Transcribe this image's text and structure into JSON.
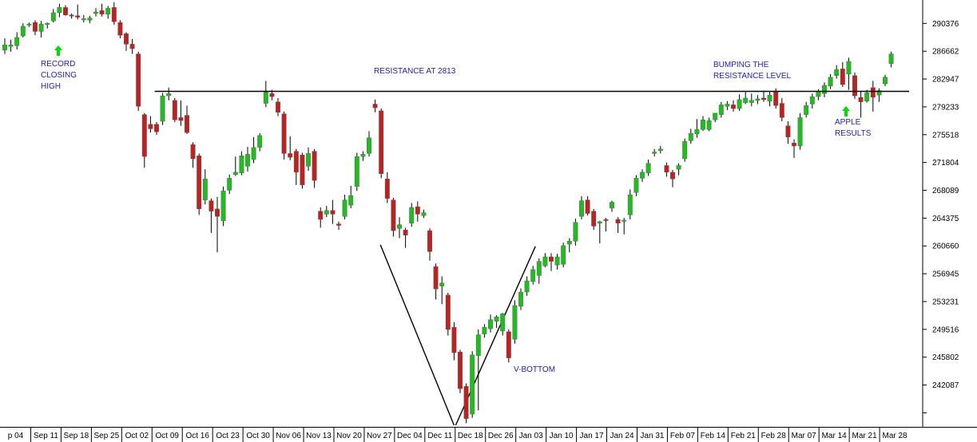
{
  "chart_data": {
    "type": "candlestick",
    "title": "",
    "xlabel": "",
    "ylabel": "",
    "colors": {
      "up": "#22bb22",
      "down": "#bb2222",
      "wick": "#000000",
      "annotation": "#2222aa",
      "arrow": "#00dd00"
    },
    "y_tick_labels": [
      "290376",
      "286662",
      "282947",
      "279233",
      "275518",
      "271804",
      "268089",
      "264375",
      "260660",
      "256945",
      "253231",
      "249516",
      "245802",
      "242087"
    ],
    "ylim": [
      236500,
      293500
    ],
    "x_tick_labels": [
      "p 04",
      "Sep 11",
      "Sep 18",
      "Sep 25",
      "Oct 02",
      "Oct 09",
      "Oct 16",
      "Oct 23",
      "Oct 30",
      "Nov 06",
      "Nov 13",
      "Nov 20",
      "Nov 27",
      "Dec 04",
      "Dec 11",
      "Dec 18",
      "Dec 26",
      "Jan 03",
      "Jan 10",
      "Jan 17",
      "Jan 24",
      "Jan 31",
      "Feb 07",
      "Feb 14",
      "Feb 21",
      "Feb 28",
      "Mar 07",
      "Mar 14",
      "Mar 21",
      "Mar 28"
    ],
    "resistance": {
      "value": 281300,
      "label": "RESISTANCE AT 2813"
    },
    "v_bottom": {
      "label": "V-BOTTOM",
      "lows": [
        {
          "date_index": 62,
          "value": 260800
        },
        {
          "date_index": 74,
          "value": 237000
        },
        {
          "date_index": 87,
          "value": 260600
        }
      ]
    },
    "annotations": [
      {
        "lines": [
          "RECORD",
          "CLOSING",
          "HIGH"
        ],
        "date_index": 9,
        "arrow": true
      },
      {
        "lines": [
          "BUMPING THE",
          "RESISTANCE LEVEL"
        ],
        "date_index": 113,
        "arrow": false
      },
      {
        "lines": [
          "APPLE",
          "RESULTS"
        ],
        "date_index": 133,
        "arrow": true
      }
    ],
    "series": [
      {
        "o": 286800,
        "h": 288400,
        "l": 286300,
        "c": 287500
      },
      {
        "o": 287300,
        "h": 288200,
        "l": 286600,
        "c": 287500
      },
      {
        "o": 287400,
        "h": 289200,
        "l": 286900,
        "c": 288500
      },
      {
        "o": 288700,
        "h": 290400,
        "l": 288500,
        "c": 290000
      },
      {
        "o": 290200,
        "h": 290500,
        "l": 289900,
        "c": 290300
      },
      {
        "o": 290500,
        "h": 290800,
        "l": 288800,
        "c": 289300
      },
      {
        "o": 289300,
        "h": 290700,
        "l": 288500,
        "c": 290300
      },
      {
        "o": 290300,
        "h": 290500,
        "l": 289700,
        "c": 290400
      },
      {
        "o": 290700,
        "h": 292300,
        "l": 290500,
        "c": 291800
      },
      {
        "o": 291800,
        "h": 293000,
        "l": 291200,
        "c": 292500
      },
      {
        "o": 292500,
        "h": 292800,
        "l": 291400,
        "c": 291500
      },
      {
        "o": 291500,
        "h": 291700,
        "l": 291000,
        "c": 291400
      },
      {
        "o": 291400,
        "h": 292900,
        "l": 290900,
        "c": 291200
      },
      {
        "o": 290900,
        "h": 291500,
        "l": 290500,
        "c": 291000
      },
      {
        "o": 290800,
        "h": 291400,
        "l": 290400,
        "c": 291100
      },
      {
        "o": 291700,
        "h": 292400,
        "l": 291300,
        "c": 291900
      },
      {
        "o": 292100,
        "h": 293000,
        "l": 291300,
        "c": 291600
      },
      {
        "o": 291600,
        "h": 292700,
        "l": 291000,
        "c": 292400
      },
      {
        "o": 292500,
        "h": 293200,
        "l": 290200,
        "c": 290600
      },
      {
        "o": 290500,
        "h": 290800,
        "l": 288400,
        "c": 288800
      },
      {
        "o": 289000,
        "h": 289200,
        "l": 286700,
        "c": 287600
      },
      {
        "o": 287600,
        "h": 288300,
        "l": 286300,
        "c": 287000
      },
      {
        "o": 286300,
        "h": 286600,
        "l": 278700,
        "c": 279300
      },
      {
        "o": 278200,
        "h": 278400,
        "l": 271100,
        "c": 272600
      },
      {
        "o": 276900,
        "h": 278000,
        "l": 275800,
        "c": 276300
      },
      {
        "o": 276900,
        "h": 277200,
        "l": 275500,
        "c": 275900
      },
      {
        "o": 277300,
        "h": 281100,
        "l": 276800,
        "c": 280700
      },
      {
        "o": 280700,
        "h": 281800,
        "l": 280100,
        "c": 281000
      },
      {
        "o": 280100,
        "h": 280400,
        "l": 277200,
        "c": 277500
      },
      {
        "o": 277800,
        "h": 280100,
        "l": 276700,
        "c": 277400
      },
      {
        "o": 278100,
        "h": 279400,
        "l": 275600,
        "c": 275800
      },
      {
        "o": 274200,
        "h": 274500,
        "l": 271100,
        "c": 272300
      },
      {
        "o": 272700,
        "h": 273000,
        "l": 264800,
        "c": 265600
      },
      {
        "o": 266800,
        "h": 270900,
        "l": 266200,
        "c": 269600
      },
      {
        "o": 266700,
        "h": 267000,
        "l": 262400,
        "c": 265300
      },
      {
        "o": 265600,
        "h": 267200,
        "l": 259800,
        "c": 264600
      },
      {
        "o": 264000,
        "h": 268600,
        "l": 263300,
        "c": 268000
      },
      {
        "o": 268100,
        "h": 270200,
        "l": 267600,
        "c": 269700
      },
      {
        "o": 270200,
        "h": 272600,
        "l": 270000,
        "c": 270500
      },
      {
        "o": 270400,
        "h": 273300,
        "l": 270100,
        "c": 272700
      },
      {
        "o": 271300,
        "h": 273900,
        "l": 270600,
        "c": 272900
      },
      {
        "o": 272200,
        "h": 275200,
        "l": 271700,
        "c": 273800
      },
      {
        "o": 273800,
        "h": 275700,
        "l": 273300,
        "c": 275400
      },
      {
        "o": 279700,
        "h": 282700,
        "l": 279200,
        "c": 281200
      },
      {
        "o": 281000,
        "h": 281500,
        "l": 280100,
        "c": 280600
      },
      {
        "o": 279900,
        "h": 280400,
        "l": 278000,
        "c": 278500
      },
      {
        "o": 278300,
        "h": 278600,
        "l": 272200,
        "c": 273000
      },
      {
        "o": 273000,
        "h": 275300,
        "l": 272100,
        "c": 272500
      },
      {
        "o": 273300,
        "h": 273600,
        "l": 268800,
        "c": 270500
      },
      {
        "o": 272800,
        "h": 273100,
        "l": 268300,
        "c": 268800
      },
      {
        "o": 271300,
        "h": 273800,
        "l": 270700,
        "c": 273000
      },
      {
        "o": 273300,
        "h": 273600,
        "l": 268400,
        "c": 269400
      },
      {
        "o": 265300,
        "h": 265800,
        "l": 263100,
        "c": 264200
      },
      {
        "o": 264900,
        "h": 266000,
        "l": 264500,
        "c": 265400
      },
      {
        "o": 265400,
        "h": 266800,
        "l": 263600,
        "c": 264900
      },
      {
        "o": 263600,
        "h": 263900,
        "l": 262800,
        "c": 263400
      },
      {
        "o": 264600,
        "h": 267500,
        "l": 264200,
        "c": 266800
      },
      {
        "o": 266100,
        "h": 268700,
        "l": 265700,
        "c": 267400
      },
      {
        "o": 268600,
        "h": 273100,
        "l": 268000,
        "c": 272600
      },
      {
        "o": 272600,
        "h": 273300,
        "l": 272000,
        "c": 272900
      },
      {
        "o": 273000,
        "h": 276000,
        "l": 272600,
        "c": 275100
      },
      {
        "o": 279600,
        "h": 280200,
        "l": 278500,
        "c": 279100
      },
      {
        "o": 278700,
        "h": 279000,
        "l": 269700,
        "c": 270300
      },
      {
        "o": 269600,
        "h": 270500,
        "l": 266400,
        "c": 267000
      },
      {
        "o": 266800,
        "h": 267100,
        "l": 261900,
        "c": 262700
      },
      {
        "o": 263000,
        "h": 264500,
        "l": 261700,
        "c": 263500
      },
      {
        "o": 262800,
        "h": 263100,
        "l": 260400,
        "c": 262100
      },
      {
        "o": 263700,
        "h": 266400,
        "l": 263200,
        "c": 265800
      },
      {
        "o": 265900,
        "h": 266600,
        "l": 263900,
        "c": 264900
      },
      {
        "o": 264700,
        "h": 265500,
        "l": 264400,
        "c": 265100
      },
      {
        "o": 262700,
        "h": 263000,
        "l": 258700,
        "c": 259900
      },
      {
        "o": 257900,
        "h": 258300,
        "l": 253500,
        "c": 254900
      },
      {
        "o": 255300,
        "h": 256600,
        "l": 252900,
        "c": 255700
      },
      {
        "o": 254100,
        "h": 254400,
        "l": 248700,
        "c": 249500
      },
      {
        "o": 249800,
        "h": 250500,
        "l": 245400,
        "c": 246400
      },
      {
        "o": 246500,
        "h": 246800,
        "l": 241000,
        "c": 241600
      },
      {
        "o": 241900,
        "h": 242300,
        "l": 237000,
        "c": 237600
      },
      {
        "o": 238200,
        "h": 246600,
        "l": 237700,
        "c": 246100
      },
      {
        "o": 246000,
        "h": 249500,
        "l": 238700,
        "c": 248800
      },
      {
        "o": 248900,
        "h": 250200,
        "l": 248400,
        "c": 249800
      },
      {
        "o": 249600,
        "h": 251500,
        "l": 249100,
        "c": 250800
      },
      {
        "o": 250600,
        "h": 251400,
        "l": 249700,
        "c": 251200
      },
      {
        "o": 249300,
        "h": 251700,
        "l": 248700,
        "c": 251600
      },
      {
        "o": 249200,
        "h": 249500,
        "l": 245100,
        "c": 245700
      },
      {
        "o": 248200,
        "h": 253400,
        "l": 247600,
        "c": 252700
      },
      {
        "o": 252600,
        "h": 255000,
        "l": 252100,
        "c": 254500
      },
      {
        "o": 254500,
        "h": 256600,
        "l": 254000,
        "c": 256000
      },
      {
        "o": 255900,
        "h": 258000,
        "l": 255500,
        "c": 257500
      },
      {
        "o": 256700,
        "h": 259000,
        "l": 255600,
        "c": 258600
      },
      {
        "o": 258000,
        "h": 259700,
        "l": 257800,
        "c": 259200
      },
      {
        "o": 259200,
        "h": 259700,
        "l": 257300,
        "c": 258600
      },
      {
        "o": 258100,
        "h": 259600,
        "l": 257500,
        "c": 259200
      },
      {
        "o": 258200,
        "h": 261100,
        "l": 257800,
        "c": 260700
      },
      {
        "o": 260900,
        "h": 261700,
        "l": 259800,
        "c": 261300
      },
      {
        "o": 261300,
        "h": 264300,
        "l": 260700,
        "c": 263800
      },
      {
        "o": 264600,
        "h": 267300,
        "l": 264200,
        "c": 266700
      },
      {
        "o": 266800,
        "h": 267300,
        "l": 264700,
        "c": 265000
      },
      {
        "o": 265300,
        "h": 265600,
        "l": 262800,
        "c": 263300
      },
      {
        "o": 263700,
        "h": 264000,
        "l": 261000,
        "c": 263900
      },
      {
        "o": 264200,
        "h": 264400,
        "l": 262600,
        "c": 264100
      },
      {
        "o": 265700,
        "h": 266700,
        "l": 265200,
        "c": 266500
      },
      {
        "o": 264200,
        "h": 264500,
        "l": 262400,
        "c": 263700
      },
      {
        "o": 264000,
        "h": 264400,
        "l": 262200,
        "c": 264100
      },
      {
        "o": 264800,
        "h": 268200,
        "l": 264200,
        "c": 267500
      },
      {
        "o": 267800,
        "h": 270100,
        "l": 267300,
        "c": 269700
      },
      {
        "o": 269700,
        "h": 270900,
        "l": 269200,
        "c": 270500
      },
      {
        "o": 270400,
        "h": 272200,
        "l": 270000,
        "c": 271700
      },
      {
        "o": 273000,
        "h": 273600,
        "l": 272600,
        "c": 273200
      },
      {
        "o": 273400,
        "h": 274000,
        "l": 273000,
        "c": 273600
      },
      {
        "o": 271400,
        "h": 271800,
        "l": 269900,
        "c": 270500
      },
      {
        "o": 270500,
        "h": 270800,
        "l": 268500,
        "c": 269600
      },
      {
        "o": 270900,
        "h": 271700,
        "l": 270100,
        "c": 271400
      },
      {
        "o": 272300,
        "h": 275000,
        "l": 271900,
        "c": 274600
      },
      {
        "o": 274700,
        "h": 276300,
        "l": 274300,
        "c": 275700
      },
      {
        "o": 275600,
        "h": 277600,
        "l": 275100,
        "c": 276200
      },
      {
        "o": 276200,
        "h": 278000,
        "l": 276000,
        "c": 277500
      },
      {
        "o": 276200,
        "h": 277800,
        "l": 276000,
        "c": 277400
      },
      {
        "o": 277500,
        "h": 278400,
        "l": 277200,
        "c": 278400
      },
      {
        "o": 278200,
        "h": 279900,
        "l": 277800,
        "c": 279500
      },
      {
        "o": 279300,
        "h": 280000,
        "l": 278800,
        "c": 279600
      },
      {
        "o": 279500,
        "h": 280100,
        "l": 278600,
        "c": 279000
      },
      {
        "o": 279000,
        "h": 280900,
        "l": 278700,
        "c": 280200
      },
      {
        "o": 279800,
        "h": 281300,
        "l": 279600,
        "c": 280400
      },
      {
        "o": 279800,
        "h": 281000,
        "l": 279300,
        "c": 280100
      },
      {
        "o": 280100,
        "h": 280800,
        "l": 279600,
        "c": 280300
      },
      {
        "o": 280400,
        "h": 281400,
        "l": 279900,
        "c": 280200
      },
      {
        "o": 280000,
        "h": 281300,
        "l": 279300,
        "c": 280800
      },
      {
        "o": 281300,
        "h": 281700,
        "l": 279000,
        "c": 279400
      },
      {
        "o": 279700,
        "h": 280400,
        "l": 277300,
        "c": 277800
      },
      {
        "o": 276700,
        "h": 277300,
        "l": 274300,
        "c": 275200
      },
      {
        "o": 274400,
        "h": 274900,
        "l": 272400,
        "c": 274000
      },
      {
        "o": 274000,
        "h": 278400,
        "l": 273500,
        "c": 277800
      },
      {
        "o": 278200,
        "h": 279900,
        "l": 277800,
        "c": 279400
      },
      {
        "o": 279600,
        "h": 281000,
        "l": 279000,
        "c": 280600
      },
      {
        "o": 280600,
        "h": 281600,
        "l": 280100,
        "c": 281300
      },
      {
        "o": 281000,
        "h": 282500,
        "l": 280500,
        "c": 282100
      },
      {
        "o": 282000,
        "h": 283600,
        "l": 281600,
        "c": 283200
      },
      {
        "o": 283400,
        "h": 284800,
        "l": 283000,
        "c": 284200
      },
      {
        "o": 284300,
        "h": 285200,
        "l": 281900,
        "c": 282200
      },
      {
        "o": 283600,
        "h": 285800,
        "l": 281500,
        "c": 285300
      },
      {
        "o": 283400,
        "h": 283800,
        "l": 280300,
        "c": 280700
      },
      {
        "o": 280500,
        "h": 281300,
        "l": 277800,
        "c": 279900
      },
      {
        "o": 280000,
        "h": 281500,
        "l": 279800,
        "c": 281100
      },
      {
        "o": 281800,
        "h": 282700,
        "l": 278600,
        "c": 280500
      },
      {
        "o": 280800,
        "h": 281700,
        "l": 279900,
        "c": 281400
      },
      {
        "o": 282300,
        "h": 283500,
        "l": 282000,
        "c": 283200
      },
      {
        "o": 285000,
        "h": 286600,
        "l": 284500,
        "c": 286300
      }
    ]
  }
}
